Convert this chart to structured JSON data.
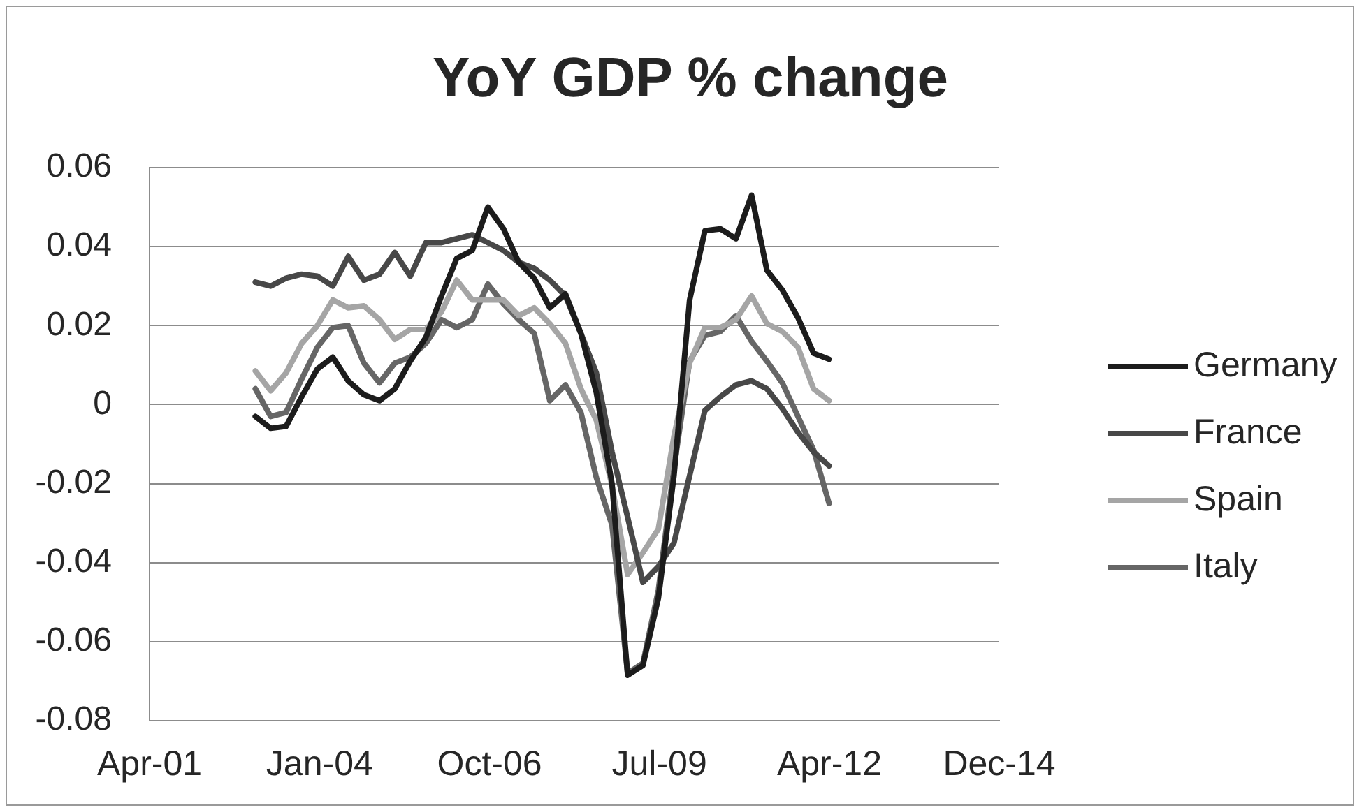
{
  "chart_data": {
    "type": "line",
    "title": "YoY GDP % change",
    "x": [
      "2003-01",
      "2003-04",
      "2003-07",
      "2003-10",
      "2004-01",
      "2004-04",
      "2004-07",
      "2004-10",
      "2005-01",
      "2005-04",
      "2005-07",
      "2005-10",
      "2006-01",
      "2006-04",
      "2006-07",
      "2006-10",
      "2007-01",
      "2007-04",
      "2007-07",
      "2007-10",
      "2008-01",
      "2008-04",
      "2008-07",
      "2008-10",
      "2009-01",
      "2009-04",
      "2009-07",
      "2009-10",
      "2010-01",
      "2010-04",
      "2010-07",
      "2010-10",
      "2011-01",
      "2011-04",
      "2011-07",
      "2011-10",
      "2012-01",
      "2012-04"
    ],
    "series": [
      {
        "name": "Germany",
        "color": "#1c1c1c",
        "values": [
          -0.003,
          -0.006,
          -0.0055,
          0.002,
          0.009,
          0.012,
          0.006,
          0.0025,
          0.001,
          0.004,
          0.011,
          0.017,
          0.0275,
          0.037,
          0.039,
          0.05,
          0.0445,
          0.036,
          0.032,
          0.0245,
          0.028,
          0.018,
          0.003,
          -0.02,
          -0.0685,
          -0.066,
          -0.049,
          -0.018,
          0.0265,
          0.044,
          0.0445,
          0.042,
          0.053,
          0.034,
          0.029,
          0.022,
          0.013,
          0.0115
        ]
      },
      {
        "name": "France",
        "color": "#484848",
        "values": [
          0.031,
          0.03,
          0.032,
          0.033,
          0.0325,
          0.03,
          0.0375,
          0.0315,
          0.033,
          0.0385,
          0.0325,
          0.041,
          0.041,
          0.042,
          0.043,
          0.041,
          0.039,
          0.036,
          0.0345,
          0.0315,
          0.0275,
          0.018,
          0.008,
          -0.012,
          -0.0285,
          -0.045,
          -0.041,
          -0.035,
          -0.018,
          -0.0015,
          0.002,
          0.005,
          0.006,
          0.004,
          -0.001,
          -0.007,
          -0.012,
          -0.0155
        ]
      },
      {
        "name": "Spain",
        "color": "#a5a5a5",
        "values": [
          0.0085,
          0.0035,
          0.008,
          0.0155,
          0.02,
          0.0265,
          0.0245,
          0.025,
          0.0215,
          0.0165,
          0.019,
          0.019,
          0.0235,
          0.0315,
          0.0265,
          0.0265,
          0.0265,
          0.0225,
          0.0245,
          0.0205,
          0.0155,
          0.004,
          -0.004,
          -0.0205,
          -0.043,
          -0.0375,
          -0.0315,
          -0.008,
          0.0105,
          0.0195,
          0.0195,
          0.0215,
          0.0275,
          0.0205,
          0.0185,
          0.0145,
          0.004,
          0.001
        ]
      },
      {
        "name": "Italy",
        "color": "#666666",
        "values": [
          0.004,
          -0.003,
          -0.002,
          0.0065,
          0.0145,
          0.0195,
          0.02,
          0.0105,
          0.0055,
          0.0105,
          0.012,
          0.0155,
          0.0215,
          0.0195,
          0.0215,
          0.0305,
          0.0255,
          0.0215,
          0.018,
          0.001,
          0.005,
          -0.002,
          -0.0185,
          -0.0305,
          -0.068,
          -0.0655,
          -0.047,
          -0.016,
          0.011,
          0.0175,
          0.0185,
          0.0225,
          0.016,
          0.011,
          0.0055,
          -0.003,
          -0.0115,
          -0.025
        ]
      }
    ],
    "xlim": [
      "2001-04-18",
      "2014-12-29"
    ],
    "xticks": [
      {
        "value": "2001-04-18",
        "label": "Apr-01"
      },
      {
        "value": "2004-01-14",
        "label": "Jan-04"
      },
      {
        "value": "2006-10-11",
        "label": "Oct-06"
      },
      {
        "value": "2009-07-07",
        "label": "Jul-09"
      },
      {
        "value": "2012-04-03",
        "label": "Apr-12"
      },
      {
        "value": "2014-12-29",
        "label": "Dec-14"
      }
    ],
    "ylim": [
      -0.08,
      0.06
    ],
    "yticks": [
      0.06,
      0.04,
      0.02,
      0,
      -0.02,
      -0.04,
      -0.06,
      -0.08
    ],
    "grid": "y",
    "legend": "right"
  }
}
